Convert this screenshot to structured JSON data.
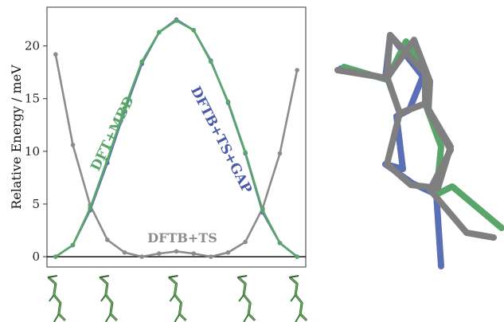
{
  "chart_data": {
    "type": "line",
    "ylabel": "Relative Energy / meV",
    "xlabel": "",
    "ylim": [
      0,
      23.3
    ],
    "xlim": [
      -0.5,
      14.5
    ],
    "yticks": [
      0,
      5,
      10,
      15,
      20
    ],
    "grid": false,
    "legend": "none",
    "zero_line": true,
    "x": [
      0,
      1,
      2,
      3,
      4,
      5,
      6,
      7,
      8,
      9,
      10,
      11,
      12,
      13,
      14
    ],
    "series": [
      {
        "name": "DFTB+TS",
        "color": "#8c8c8c",
        "values": [
          19.2,
          10.6,
          4.9,
          1.6,
          0.4,
          0.0,
          0.3,
          0.5,
          0.3,
          0.0,
          0.4,
          1.4,
          4.6,
          9.8,
          17.7
        ]
      },
      {
        "name": "DFTB+TS+GAP",
        "color": "#5b6fb7",
        "values": [
          0.0,
          1.1,
          4.4,
          8.9,
          13.8,
          18.3,
          21.3,
          22.5,
          21.5,
          18.6,
          14.6,
          9.8,
          4.2,
          1.3,
          0.0
        ]
      },
      {
        "name": "DFT+MBD",
        "color": "#5aa66a",
        "values": [
          0.0,
          1.1,
          4.6,
          9.2,
          14.1,
          18.5,
          21.3,
          22.4,
          21.5,
          18.5,
          14.7,
          9.9,
          4.4,
          1.3,
          0.0
        ]
      }
    ],
    "annotations": [
      {
        "text": "DFT+MBD",
        "color": "#5aa66a"
      },
      {
        "text": "DFTB+TS+GAP",
        "color": "#4a5aa8"
      },
      {
        "text": "DFTB+TS",
        "color": "#8c8c8c"
      }
    ]
  },
  "molecule_thumbnails": [
    "molecule-frame-1",
    "molecule-frame-2",
    "molecule-frame-3",
    "molecule-frame-4",
    "molecule-frame-5"
  ],
  "overlay_structure": {
    "colors": [
      "#7f7f7f",
      "#5aa66a",
      "#5b6fb7"
    ]
  }
}
